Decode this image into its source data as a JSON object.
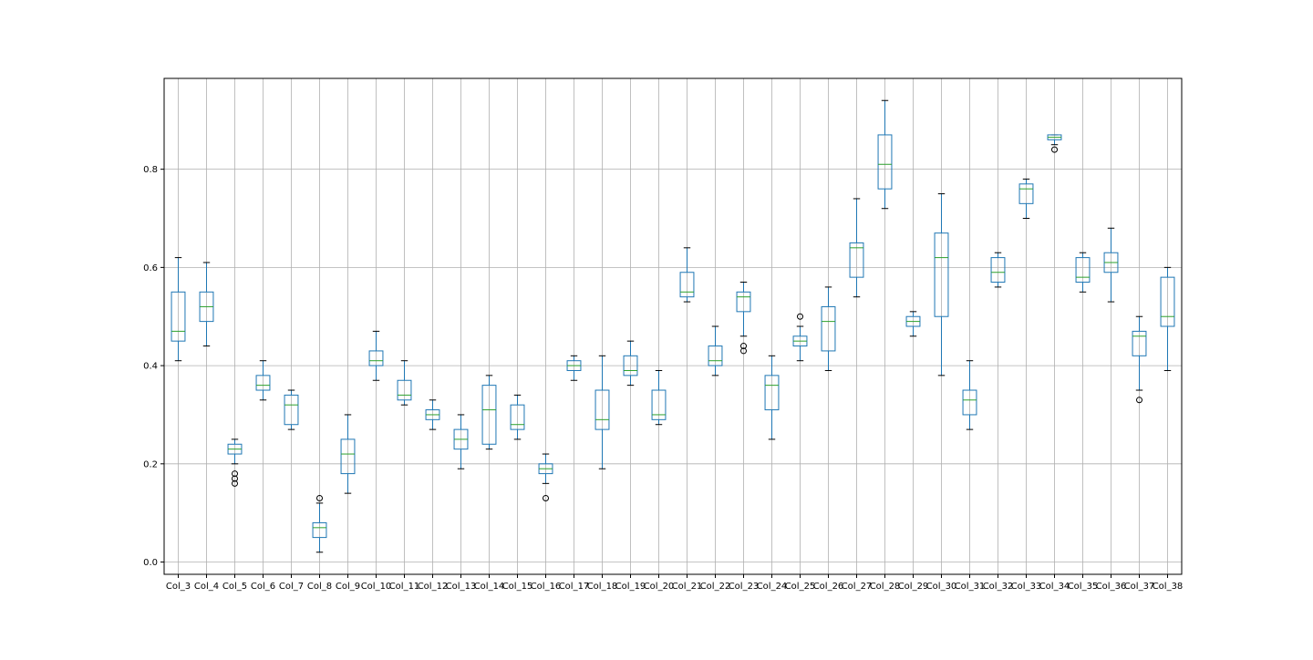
{
  "chart_data": {
    "type": "box",
    "title": "",
    "xlabel": "",
    "ylabel": "",
    "ylim": [
      -0.025,
      0.985
    ],
    "yticks": [
      0.0,
      0.2,
      0.4,
      0.6,
      0.8
    ],
    "ytick_labels": [
      "0.0",
      "0.2",
      "0.4",
      "0.6",
      "0.8"
    ],
    "grid": true,
    "legend": "none",
    "colors": {
      "box": "#1f77b4",
      "median": "#2ca02c",
      "whisker": "#000000",
      "grid": "#b0b0b0",
      "axes": "#000000"
    },
    "boxes": [
      {
        "label": "Col_3",
        "whislo": 0.41,
        "q1": 0.45,
        "med": 0.47,
        "q3": 0.55,
        "whishi": 0.62,
        "fliers": []
      },
      {
        "label": "Col_4",
        "whislo": 0.44,
        "q1": 0.49,
        "med": 0.52,
        "q3": 0.55,
        "whishi": 0.61,
        "fliers": []
      },
      {
        "label": "Col_5",
        "whislo": 0.2,
        "q1": 0.22,
        "med": 0.23,
        "q3": 0.24,
        "whishi": 0.25,
        "fliers": [
          0.18,
          0.17,
          0.16
        ]
      },
      {
        "label": "Col_6",
        "whislo": 0.33,
        "q1": 0.35,
        "med": 0.36,
        "q3": 0.38,
        "whishi": 0.41,
        "fliers": []
      },
      {
        "label": "Col_7",
        "whislo": 0.27,
        "q1": 0.28,
        "med": 0.32,
        "q3": 0.34,
        "whishi": 0.35,
        "fliers": []
      },
      {
        "label": "Col_8",
        "whislo": 0.02,
        "q1": 0.05,
        "med": 0.07,
        "q3": 0.08,
        "whishi": 0.12,
        "fliers": [
          0.13
        ]
      },
      {
        "label": "Col_9",
        "whislo": 0.14,
        "q1": 0.18,
        "med": 0.22,
        "q3": 0.25,
        "whishi": 0.3,
        "fliers": []
      },
      {
        "label": "Col_10",
        "whislo": 0.37,
        "q1": 0.4,
        "med": 0.41,
        "q3": 0.43,
        "whishi": 0.47,
        "fliers": []
      },
      {
        "label": "Col_11",
        "whislo": 0.32,
        "q1": 0.33,
        "med": 0.34,
        "q3": 0.37,
        "whishi": 0.41,
        "fliers": []
      },
      {
        "label": "Col_12",
        "whislo": 0.27,
        "q1": 0.29,
        "med": 0.3,
        "q3": 0.31,
        "whishi": 0.33,
        "fliers": []
      },
      {
        "label": "Col_13",
        "whislo": 0.19,
        "q1": 0.23,
        "med": 0.25,
        "q3": 0.27,
        "whishi": 0.3,
        "fliers": []
      },
      {
        "label": "Col_14",
        "whislo": 0.23,
        "q1": 0.24,
        "med": 0.31,
        "q3": 0.36,
        "whishi": 0.38,
        "fliers": []
      },
      {
        "label": "Col_15",
        "whislo": 0.25,
        "q1": 0.27,
        "med": 0.28,
        "q3": 0.32,
        "whishi": 0.34,
        "fliers": []
      },
      {
        "label": "Col_16",
        "whislo": 0.16,
        "q1": 0.18,
        "med": 0.19,
        "q3": 0.2,
        "whishi": 0.22,
        "fliers": [
          0.13
        ]
      },
      {
        "label": "Col_17",
        "whislo": 0.37,
        "q1": 0.39,
        "med": 0.4,
        "q3": 0.41,
        "whishi": 0.42,
        "fliers": []
      },
      {
        "label": "Col_18",
        "whislo": 0.19,
        "q1": 0.27,
        "med": 0.29,
        "q3": 0.35,
        "whishi": 0.42,
        "fliers": []
      },
      {
        "label": "Col_19",
        "whislo": 0.36,
        "q1": 0.38,
        "med": 0.39,
        "q3": 0.42,
        "whishi": 0.45,
        "fliers": []
      },
      {
        "label": "Col_20",
        "whislo": 0.28,
        "q1": 0.29,
        "med": 0.3,
        "q3": 0.35,
        "whishi": 0.39,
        "fliers": []
      },
      {
        "label": "Col_21",
        "whislo": 0.53,
        "q1": 0.54,
        "med": 0.55,
        "q3": 0.59,
        "whishi": 0.64,
        "fliers": []
      },
      {
        "label": "Col_22",
        "whislo": 0.38,
        "q1": 0.4,
        "med": 0.41,
        "q3": 0.44,
        "whishi": 0.48,
        "fliers": []
      },
      {
        "label": "Col_23",
        "whislo": 0.46,
        "q1": 0.51,
        "med": 0.54,
        "q3": 0.55,
        "whishi": 0.57,
        "fliers": [
          0.44,
          0.43
        ]
      },
      {
        "label": "Col_24",
        "whislo": 0.25,
        "q1": 0.31,
        "med": 0.36,
        "q3": 0.38,
        "whishi": 0.42,
        "fliers": []
      },
      {
        "label": "Col_25",
        "whislo": 0.41,
        "q1": 0.44,
        "med": 0.45,
        "q3": 0.46,
        "whishi": 0.48,
        "fliers": [
          0.5
        ]
      },
      {
        "label": "Col_26",
        "whislo": 0.39,
        "q1": 0.43,
        "med": 0.49,
        "q3": 0.52,
        "whishi": 0.56,
        "fliers": []
      },
      {
        "label": "Col_27",
        "whislo": 0.54,
        "q1": 0.58,
        "med": 0.64,
        "q3": 0.65,
        "whishi": 0.74,
        "fliers": []
      },
      {
        "label": "Col_28",
        "whislo": 0.72,
        "q1": 0.76,
        "med": 0.81,
        "q3": 0.87,
        "whishi": 0.94,
        "fliers": []
      },
      {
        "label": "Col_29",
        "whislo": 0.46,
        "q1": 0.48,
        "med": 0.49,
        "q3": 0.5,
        "whishi": 0.51,
        "fliers": []
      },
      {
        "label": "Col_30",
        "whislo": 0.38,
        "q1": 0.5,
        "med": 0.62,
        "q3": 0.67,
        "whishi": 0.75,
        "fliers": []
      },
      {
        "label": "Col_31",
        "whislo": 0.27,
        "q1": 0.3,
        "med": 0.33,
        "q3": 0.35,
        "whishi": 0.41,
        "fliers": []
      },
      {
        "label": "Col_32",
        "whislo": 0.56,
        "q1": 0.57,
        "med": 0.59,
        "q3": 0.62,
        "whishi": 0.63,
        "fliers": []
      },
      {
        "label": "Col_33",
        "whislo": 0.7,
        "q1": 0.73,
        "med": 0.76,
        "q3": 0.77,
        "whishi": 0.78,
        "fliers": []
      },
      {
        "label": "Col_34",
        "whislo": 0.85,
        "q1": 0.86,
        "med": 0.865,
        "q3": 0.87,
        "whishi": 0.87,
        "fliers": [
          0.84
        ]
      },
      {
        "label": "Col_35",
        "whislo": 0.55,
        "q1": 0.57,
        "med": 0.58,
        "q3": 0.62,
        "whishi": 0.63,
        "fliers": []
      },
      {
        "label": "Col_36",
        "whislo": 0.53,
        "q1": 0.59,
        "med": 0.61,
        "q3": 0.63,
        "whishi": 0.68,
        "fliers": []
      },
      {
        "label": "Col_37",
        "whislo": 0.35,
        "q1": 0.42,
        "med": 0.46,
        "q3": 0.47,
        "whishi": 0.5,
        "fliers": [
          0.33
        ]
      },
      {
        "label": "Col_38",
        "whislo": 0.39,
        "q1": 0.48,
        "med": 0.5,
        "q3": 0.58,
        "whishi": 0.6,
        "fliers": []
      }
    ]
  }
}
